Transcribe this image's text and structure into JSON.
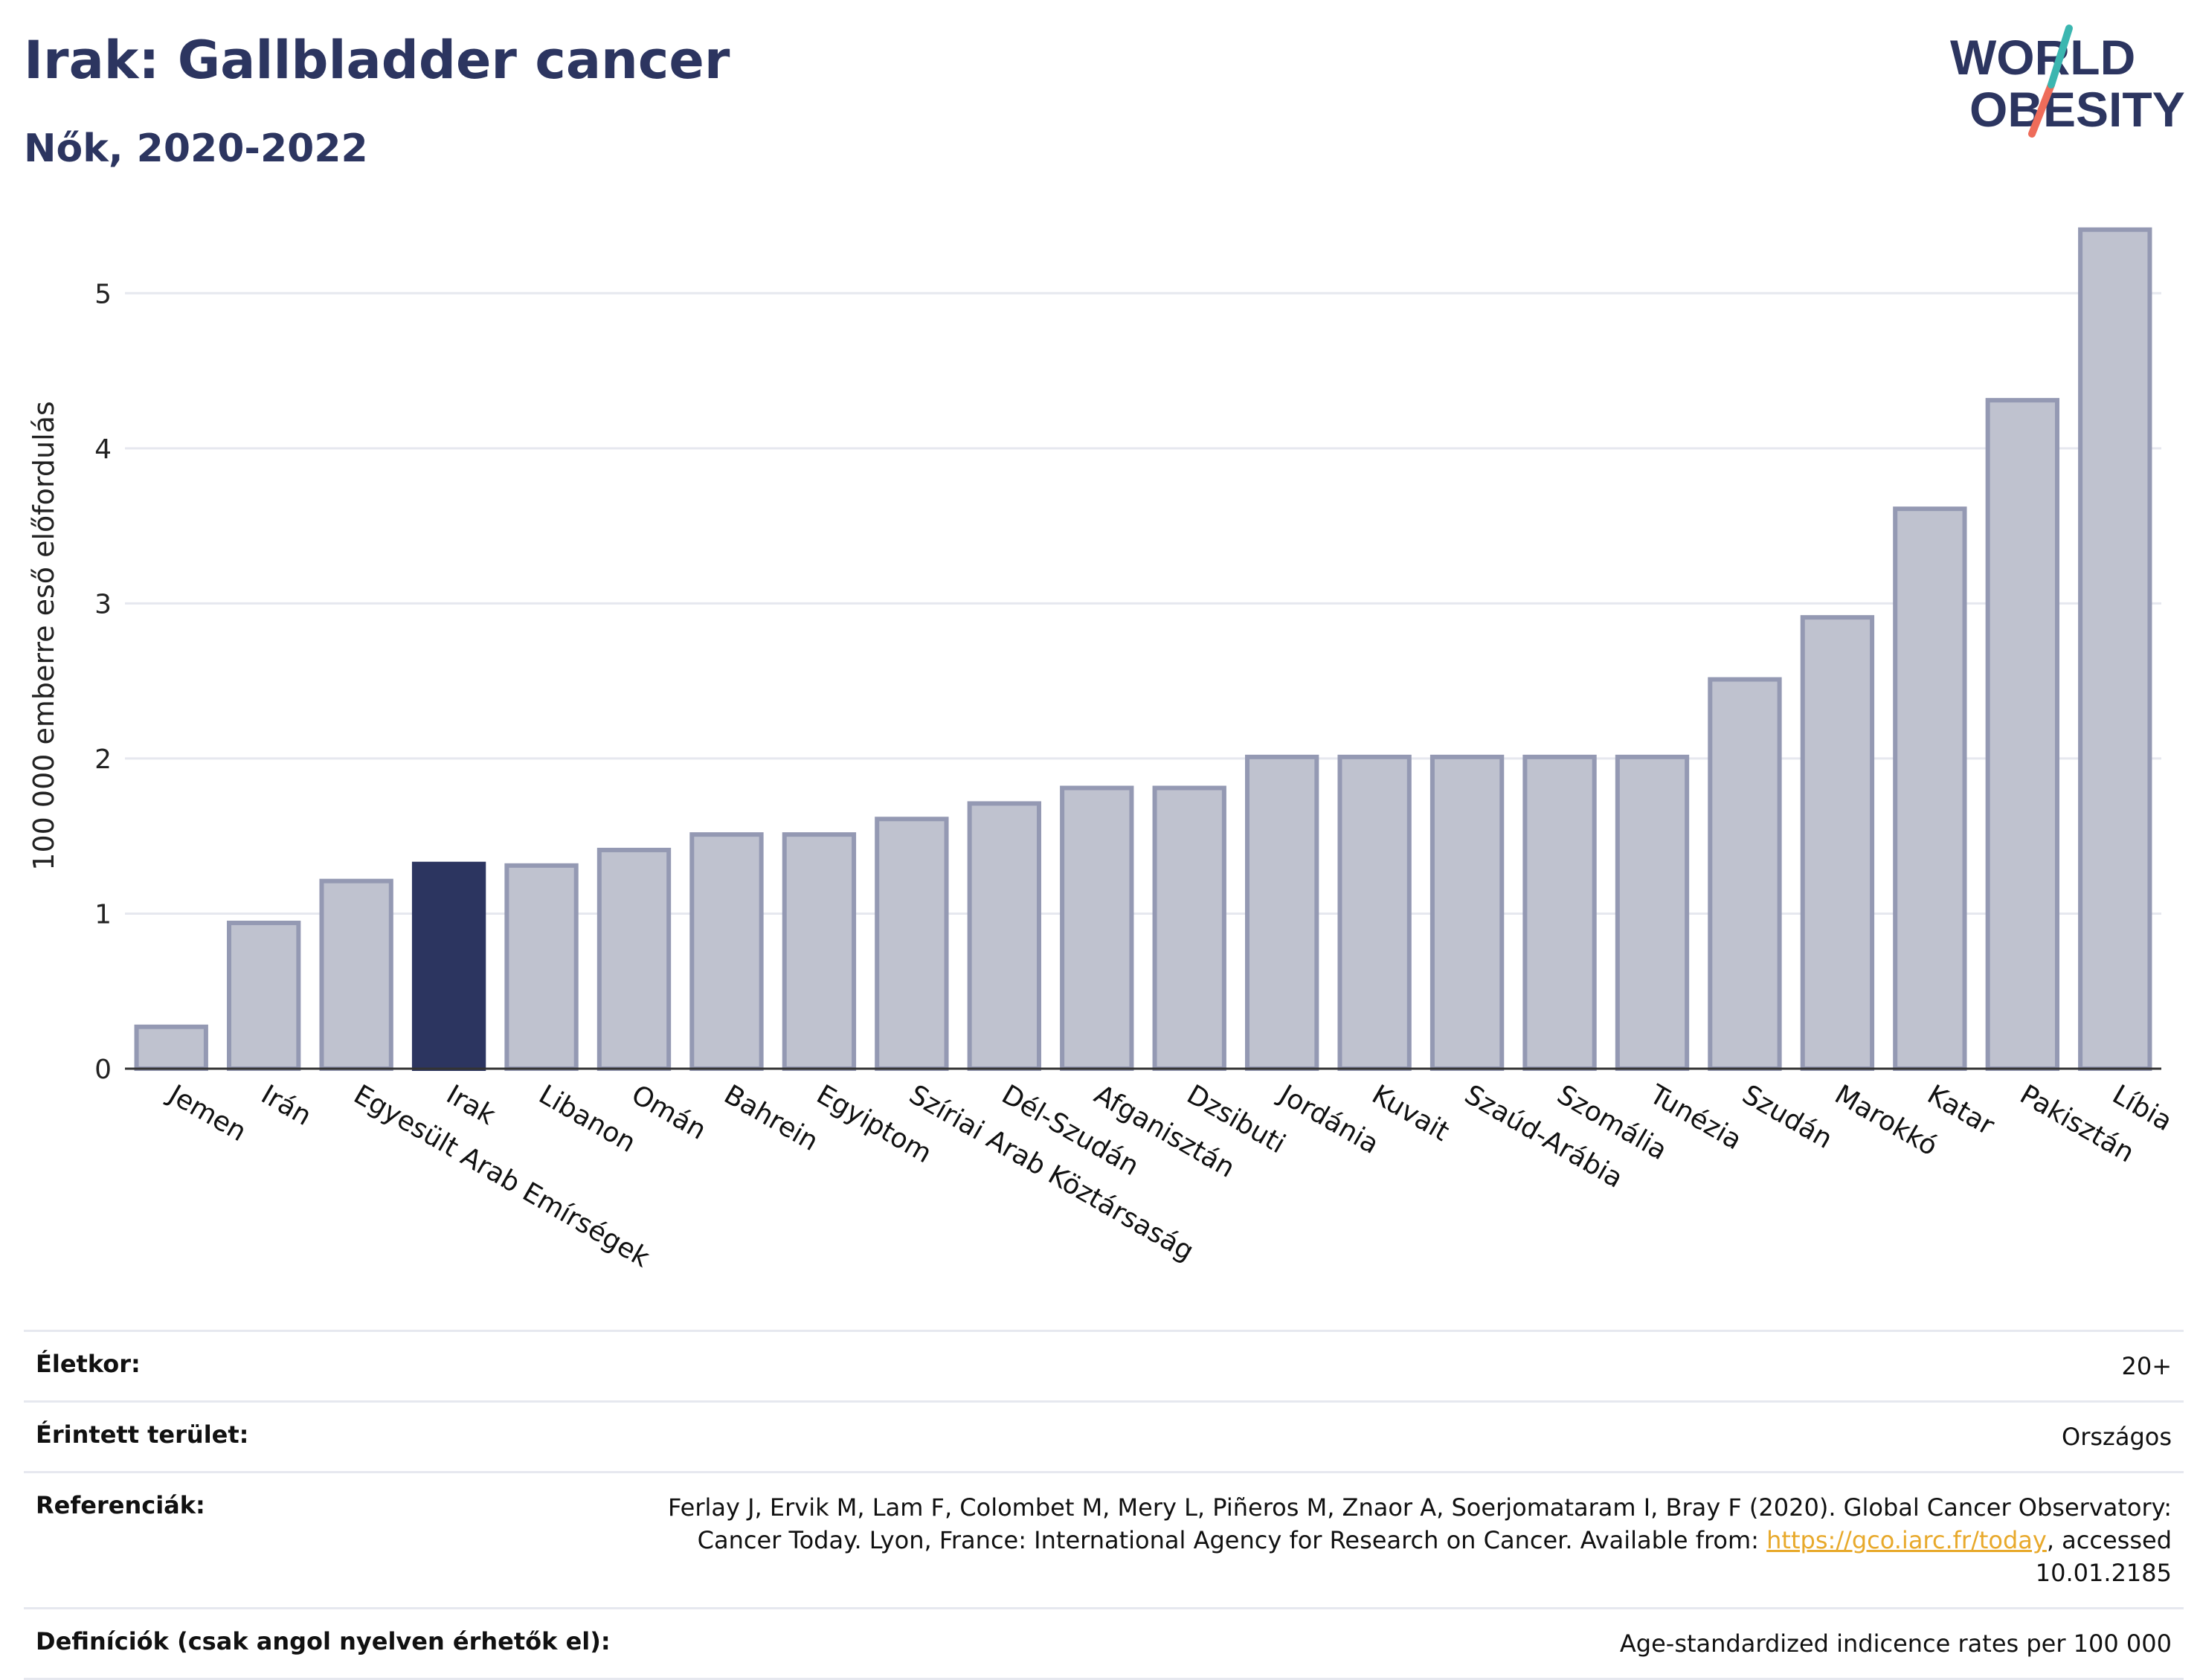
{
  "header": {
    "title": "Irak: Gallbladder cancer",
    "subtitle": "Nők, 2020-2022"
  },
  "logo": {
    "line1": "WORLD",
    "line2": "OBESITY",
    "colors": {
      "text": "#2c3560",
      "slash_top": "#3bb6b0",
      "slash_bottom": "#ee6c5a"
    }
  },
  "chart_data": {
    "type": "bar",
    "title": "",
    "xlabel": "",
    "ylabel": "100 000 emberre eső előfordulás",
    "ylim": [
      0,
      5.5
    ],
    "yticks": [
      0,
      1,
      2,
      3,
      4,
      5
    ],
    "grid": true,
    "highlight": "Irak",
    "colors": {
      "bar": "#bfc2cf",
      "bar_stroke": "#9499b3",
      "highlight": "#2c3560",
      "grid": "#e6e8ef",
      "axis": "#333333"
    },
    "categories": [
      "Jemen",
      "Irán",
      "Egyesült Arab Emírségek",
      "Irak",
      "Libanon",
      "Omán",
      "Bahrein",
      "Egyiptom",
      "Szíriai Arab Köztársaság",
      "Dél-Szudán",
      "Afganisztán",
      "Dzsibuti",
      "Jordánia",
      "Kuvait",
      "Szaúd-Arábia",
      "Szomália",
      "Tunézia",
      "Szudán",
      "Marokkó",
      "Katar",
      "Pakisztán",
      "Líbia"
    ],
    "values": [
      0.27,
      0.94,
      1.21,
      1.32,
      1.31,
      1.41,
      1.51,
      1.51,
      1.61,
      1.71,
      1.81,
      1.81,
      2.01,
      2.01,
      2.01,
      2.01,
      2.01,
      2.51,
      2.91,
      3.61,
      4.31,
      5.41
    ]
  },
  "meta": {
    "rows": [
      {
        "label": "Életkor:",
        "value": "20+"
      },
      {
        "label": "Érintett terület:",
        "value": "Országos"
      },
      {
        "label": "Referenciák:",
        "value_pre": "Ferlay J, Ervik M, Lam F, Colombet M, Mery L, Piñeros M, Znaor A, Soerjomataram I, Bray F (2020). Global Cancer Observatory: Cancer Today. Lyon, France: International Agency for Research on Cancer. Available from: ",
        "link": "https://gco.iarc.fr/today",
        "value_post": ", accessed 10.01.2185"
      },
      {
        "label": "Definíciók (csak angol nyelven érhetők el):",
        "value": "Age-standardized indicence rates per 100 000"
      }
    ]
  }
}
